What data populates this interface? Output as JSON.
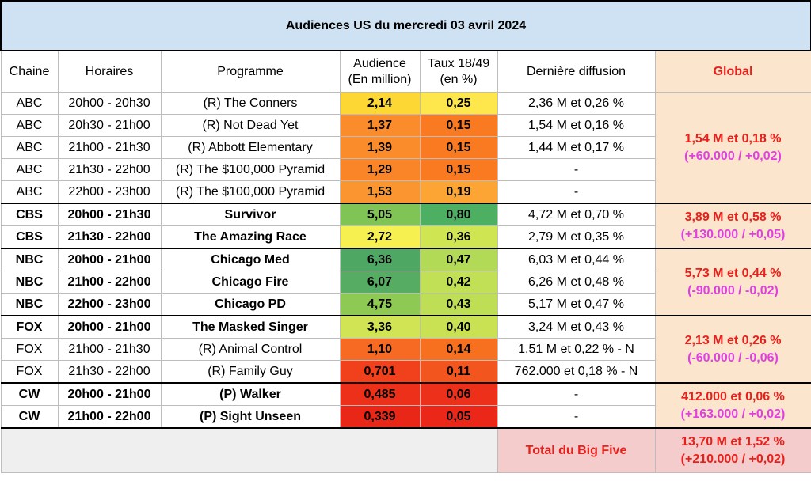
{
  "title": "Audiences US du mercredi 03 avril 2024",
  "headers": {
    "chaine": "Chaine",
    "horaires": "Horaires",
    "programme": "Programme",
    "audience_line1": "Audience",
    "audience_line2": "(En million)",
    "taux_line1": "Taux 18/49",
    "taux_line2": "(en %)",
    "derniere": "Dernière diffusion",
    "global": "Global"
  },
  "rows": [
    {
      "chaine": "ABC",
      "horaires": "20h00 - 20h30",
      "programme": "(R) The Conners",
      "audience": "2,14",
      "taux": "0,25",
      "derniere": "2,36 M et 0,26 %",
      "audience_color": "#fdd835",
      "taux_color": "#fde74c"
    },
    {
      "chaine": "ABC",
      "horaires": "20h30 - 21h00",
      "programme": "(R) Not Dead Yet",
      "audience": "1,37",
      "taux": "0,15",
      "derniere": "1,54 M et 0,16 %",
      "audience_color": "#fb8c2c",
      "taux_color": "#fa7a22"
    },
    {
      "chaine": "ABC",
      "horaires": "21h00 - 21h30",
      "programme": "(R) Abbott Elementary",
      "audience": "1,39",
      "taux": "0,15",
      "derniere": "1,44 M et 0,17 %",
      "audience_color": "#fb8c2c",
      "taux_color": "#fa7a22"
    },
    {
      "chaine": "ABC",
      "horaires": "21h30 - 22h00",
      "programme": "(R) The $100,000 Pyramid",
      "audience": "1,29",
      "taux": "0,15",
      "derniere": "-",
      "audience_color": "#fa8529",
      "taux_color": "#fa7a22"
    },
    {
      "chaine": "ABC",
      "horaires": "22h00 - 23h00",
      "programme": "(R) The $100,000 Pyramid",
      "audience": "1,53",
      "taux": "0,19",
      "derniere": "-",
      "audience_color": "#fb9530",
      "taux_color": "#fca535"
    },
    {
      "chaine": "CBS",
      "horaires": "20h00 - 21h30",
      "programme": "Survivor",
      "audience": "5,05",
      "taux": "0,80",
      "derniere": "4,72 M et 0,70 %",
      "audience_color": "#7fc454",
      "taux_color": "#4caf62"
    },
    {
      "chaine": "CBS",
      "horaires": "21h30 - 22h00",
      "programme": "The Amazing Race",
      "audience": "2,72",
      "taux": "0,36",
      "derniere": "2,79 M et 0,35 %",
      "audience_color": "#f6f051",
      "taux_color": "#cfe552"
    },
    {
      "chaine": "NBC",
      "horaires": "20h00 - 21h00",
      "programme": "Chicago Med",
      "audience": "6,36",
      "taux": "0,47",
      "derniere": "6,03 M et 0,44 %",
      "audience_color": "#4ea864",
      "taux_color": "#b3da56"
    },
    {
      "chaine": "NBC",
      "horaires": "21h00 - 22h00",
      "programme": "Chicago Fire",
      "audience": "6,07",
      "taux": "0,42",
      "derniere": "6,26 M et 0,48 %",
      "audience_color": "#57ac63",
      "taux_color": "#c2e055"
    },
    {
      "chaine": "NBC",
      "horaires": "22h00 - 23h00",
      "programme": "Chicago PD",
      "audience": "4,75",
      "taux": "0,43",
      "derniere": "5,17 M et 0,47 %",
      "audience_color": "#8dc953",
      "taux_color": "#bedf55"
    },
    {
      "chaine": "FOX",
      "horaires": "20h00 - 21h00",
      "programme": "The Masked Singer",
      "audience": "3,36",
      "taux": "0,40",
      "derniere": "3,24 M et 0,43 %",
      "audience_color": "#d1e554",
      "taux_color": "#c8e254"
    },
    {
      "chaine": "FOX",
      "horaires": "21h00 - 21h30",
      "programme": "(R) Animal Control",
      "audience": "1,10",
      "taux": "0,14",
      "derniere": "1,51 M et 0,22 % - N",
      "audience_color": "#f76a24",
      "taux_color": "#f6701f"
    },
    {
      "chaine": "FOX",
      "horaires": "21h30 - 22h00",
      "programme": "(R) Family Guy",
      "audience": "0,701",
      "taux": "0,11",
      "derniere": "762.000 et 0,18 % - N",
      "audience_color": "#f0401c",
      "taux_color": "#f2551d"
    },
    {
      "chaine": "CW",
      "horaires": "20h00 - 21h00",
      "programme": "(P) Walker",
      "audience": "0,485",
      "taux": "0,06",
      "derniere": "-",
      "audience_color": "#ec3019",
      "taux_color": "#ec3019"
    },
    {
      "chaine": "CW",
      "horaires": "21h00 - 22h00",
      "programme": "(P) Sight Unseen",
      "audience": "0,339",
      "taux": "0,05",
      "derniere": "-",
      "audience_color": "#e92718",
      "taux_color": "#ea2718"
    }
  ],
  "globals": {
    "abc": {
      "line1": "1,54 M et 0,18 %",
      "line2": "(+60.000 / +0,02)"
    },
    "cbs": {
      "line1": "3,89 M et 0,58 %",
      "line2": "(+130.000 / +0,05)"
    },
    "nbc": {
      "line1": "5,73 M et 0,44 %",
      "line2": "(-90.000 / -0,02)"
    },
    "fox": {
      "line1": "2,13 M et 0,26 %",
      "line2": "(-60.000 / -0,06)"
    },
    "cw": {
      "line1": "412.000 et 0,06 %",
      "line2": "(+163.000 / +0,02)"
    }
  },
  "footer": {
    "label": "Total du Big Five",
    "line1": "13,70 M et 1,52 %",
    "line2": "(+210.000 / +0,02)"
  }
}
